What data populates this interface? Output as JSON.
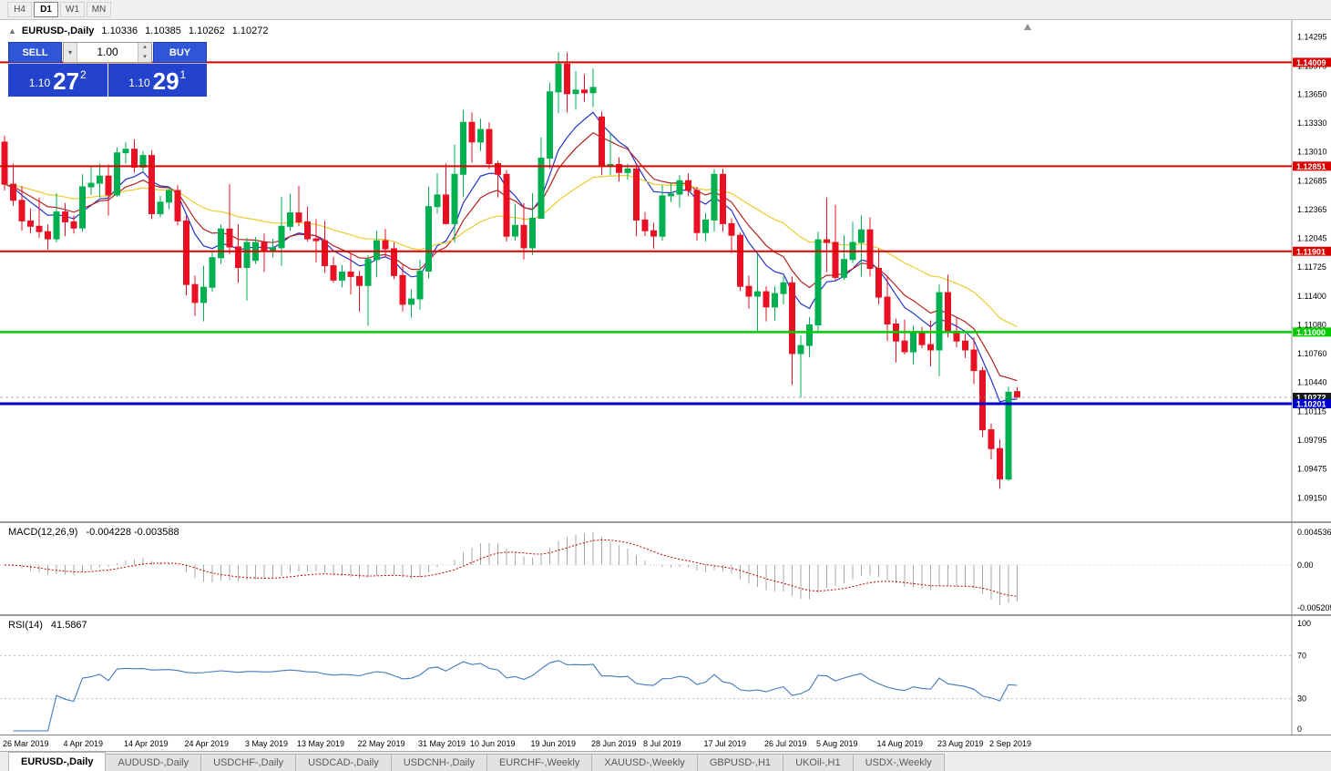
{
  "toolbar": {
    "timeframes": [
      {
        "label": "H4",
        "active": false
      },
      {
        "label": "D1",
        "active": true
      },
      {
        "label": "W1",
        "active": false
      },
      {
        "label": "MN",
        "active": false
      }
    ]
  },
  "chart_header": {
    "collapse_icon": "▲",
    "symbol": "EURUSD-,Daily",
    "ohlc": [
      "1.10336",
      "1.10385",
      "1.10262",
      "1.10272"
    ]
  },
  "trade_panel": {
    "sell_label": "SELL",
    "buy_label": "BUY",
    "volume": "1.00",
    "volume_dropdown_icon": "▾",
    "spin_up_icon": "▴",
    "spin_down_icon": "▾",
    "sell_price": {
      "whole": "1.10",
      "pips": "27",
      "pipette": "2"
    },
    "buy_price": {
      "whole": "1.10",
      "pips": "29",
      "pipette": "1"
    }
  },
  "macd_panel": {
    "name": "MACD(12,26,9)",
    "values": "-0.004228 -0.003588",
    "axis_labels": [
      "0.004536",
      "0.00",
      "-0.005205"
    ],
    "hist_color": "#a8a8a8",
    "signal_color": "#c00000"
  },
  "rsi_panel": {
    "name": "RSI(14)",
    "value": "41.5867",
    "axis_labels": [
      "100",
      "70",
      "30",
      "0"
    ],
    "levels": [
      70,
      30
    ],
    "line_color": "#4279bd"
  },
  "bottom_tabs": [
    {
      "label": "EURUSD-,Daily",
      "active": true
    },
    {
      "label": "AUDUSD-,Daily",
      "active": false
    },
    {
      "label": "USDCHF-,Daily",
      "active": false
    },
    {
      "label": "USDCAD-,Daily",
      "active": false
    },
    {
      "label": "USDCNH-,Daily",
      "active": false
    },
    {
      "label": "EURCHF-,Weekly",
      "active": false
    },
    {
      "label": "XAUUSD-,Weekly",
      "active": false
    },
    {
      "label": "GBPUSD-,H1",
      "active": false
    },
    {
      "label": "UKOil-,H1",
      "active": false
    },
    {
      "label": "USDX-,Weekly",
      "active": false
    }
  ],
  "chart_data": {
    "type": "candlestick",
    "symbol": "EURUSD-",
    "timeframe": "Daily",
    "up_color": "#00b050",
    "down_color": "#e81123",
    "price_range": [
      1.0895,
      1.1442
    ],
    "price_axis_labels": [
      "1.14295",
      "1.13970",
      "1.13650",
      "1.13330",
      "1.13010",
      "1.12685",
      "1.12365",
      "1.12045",
      "1.11725",
      "1.11400",
      "1.11080",
      "1.10760",
      "1.10440",
      "1.10115",
      "1.09795",
      "1.09475",
      "1.09150"
    ],
    "h_lines": [
      {
        "price": 1.14009,
        "label": "1.14009",
        "color": "#dd0000",
        "width": 2
      },
      {
        "price": 1.12851,
        "label": "1.12851",
        "color": "#dd0000",
        "width": 2
      },
      {
        "price": 1.11901,
        "label": "1.11901",
        "color": "#dd0000",
        "width": 2
      },
      {
        "price": 1.11,
        "label": "1.11000",
        "color": "#00cc00",
        "width": 2.5
      },
      {
        "price": 1.10201,
        "label": "1.10201",
        "color": "#0000cc",
        "width": 3
      }
    ],
    "current_price": {
      "price": 1.10272,
      "label": "1.10272",
      "badge_color": "#1a1a1a"
    },
    "ma_lines": [
      {
        "name": "ma-fast-blue",
        "period": 8,
        "color": "#2233cc"
      },
      {
        "name": "ma-mid-red",
        "period": 13,
        "color": "#b22222"
      },
      {
        "name": "ma-slow-yellow",
        "period": 34,
        "color": "#e9cd2d"
      }
    ],
    "time_axis": [
      {
        "label": "26 Mar 2019",
        "idx": 0
      },
      {
        "label": "4 Apr 2019",
        "idx": 7
      },
      {
        "label": "14 Apr 2019",
        "idx": 14
      },
      {
        "label": "24 Apr 2019",
        "idx": 21
      },
      {
        "label": "3 May 2019",
        "idx": 28
      },
      {
        "label": "13 May 2019",
        "idx": 34
      },
      {
        "label": "22 May 2019",
        "idx": 41
      },
      {
        "label": "31 May 2019",
        "idx": 48
      },
      {
        "label": "10 Jun 2019",
        "idx": 54
      },
      {
        "label": "19 Jun 2019",
        "idx": 61
      },
      {
        "label": "28 Jun 2019",
        "idx": 68
      },
      {
        "label": "8 Jul 2019",
        "idx": 74
      },
      {
        "label": "17 Jul 2019",
        "idx": 81
      },
      {
        "label": "26 Jul 2019",
        "idx": 88
      },
      {
        "label": "5 Aug 2019",
        "idx": 94
      },
      {
        "label": "14 Aug 2019",
        "idx": 101
      },
      {
        "label": "23 Aug 2019",
        "idx": 108
      },
      {
        "label": "2 Sep 2019",
        "idx": 114
      }
    ],
    "candles": [
      [
        1.1312,
        1.1319,
        1.1258,
        1.1265
      ],
      [
        1.1265,
        1.1288,
        1.1241,
        1.1247
      ],
      [
        1.1247,
        1.1263,
        1.1213,
        1.1224
      ],
      [
        1.1224,
        1.1238,
        1.121,
        1.1218
      ],
      [
        1.1218,
        1.125,
        1.1205,
        1.1212
      ],
      [
        1.1212,
        1.122,
        1.1192,
        1.1204
      ],
      [
        1.1204,
        1.1255,
        1.12,
        1.1234
      ],
      [
        1.1234,
        1.1244,
        1.1207,
        1.1223
      ],
      [
        1.1223,
        1.123,
        1.121,
        1.1216
      ],
      [
        1.1216,
        1.1276,
        1.1212,
        1.1262
      ],
      [
        1.1262,
        1.1285,
        1.1253,
        1.1266
      ],
      [
        1.1266,
        1.1288,
        1.125,
        1.1274
      ],
      [
        1.1274,
        1.1287,
        1.123,
        1.1253
      ],
      [
        1.1253,
        1.1306,
        1.1251,
        1.13
      ],
      [
        1.13,
        1.1312,
        1.1288,
        1.1304
      ],
      [
        1.1304,
        1.1315,
        1.1278,
        1.1284
      ],
      [
        1.1284,
        1.1302,
        1.1279,
        1.1297
      ],
      [
        1.1297,
        1.1303,
        1.1226,
        1.1232
      ],
      [
        1.1232,
        1.1252,
        1.1228,
        1.1245
      ],
      [
        1.1245,
        1.1262,
        1.1237,
        1.1258
      ],
      [
        1.1258,
        1.1264,
        1.1219,
        1.1224
      ],
      [
        1.1224,
        1.123,
        1.1141,
        1.1153
      ],
      [
        1.1153,
        1.1163,
        1.1118,
        1.1133
      ],
      [
        1.1133,
        1.1174,
        1.1112,
        1.115
      ],
      [
        1.115,
        1.119,
        1.1145,
        1.1183
      ],
      [
        1.1183,
        1.122,
        1.1176,
        1.1215
      ],
      [
        1.1215,
        1.1265,
        1.1187,
        1.1195
      ],
      [
        1.1195,
        1.122,
        1.1155,
        1.1172
      ],
      [
        1.1172,
        1.1205,
        1.1135,
        1.12
      ],
      [
        1.118,
        1.1206,
        1.1176,
        1.12
      ],
      [
        1.12,
        1.121,
        1.1167,
        1.119
      ],
      [
        1.119,
        1.1204,
        1.1183,
        1.1194
      ],
      [
        1.1194,
        1.1251,
        1.1174,
        1.1218
      ],
      [
        1.1218,
        1.1254,
        1.1213,
        1.1233
      ],
      [
        1.1233,
        1.1263,
        1.1218,
        1.1223
      ],
      [
        1.1223,
        1.124,
        1.1201,
        1.1204
      ],
      [
        1.1204,
        1.1226,
        1.1178,
        1.1202
      ],
      [
        1.1202,
        1.1224,
        1.1166,
        1.1174
      ],
      [
        1.1174,
        1.1184,
        1.1155,
        1.1158
      ],
      [
        1.1158,
        1.1175,
        1.115,
        1.1167
      ],
      [
        1.1167,
        1.1188,
        1.1142,
        1.1162
      ],
      [
        1.1162,
        1.1168,
        1.1123,
        1.1152
      ],
      [
        1.1152,
        1.1186,
        1.1107,
        1.1181
      ],
      [
        1.1181,
        1.1213,
        1.1161,
        1.1202
      ],
      [
        1.1202,
        1.1215,
        1.1184,
        1.1193
      ],
      [
        1.1193,
        1.12,
        1.1159,
        1.1163
      ],
      [
        1.1163,
        1.1175,
        1.1123,
        1.1131
      ],
      [
        1.1131,
        1.1148,
        1.1116,
        1.1137
      ],
      [
        1.1137,
        1.1181,
        1.1125,
        1.1168
      ],
      [
        1.1168,
        1.1262,
        1.116,
        1.124
      ],
      [
        1.124,
        1.1277,
        1.1232,
        1.1253
      ],
      [
        1.1253,
        1.1288,
        1.122,
        1.1221
      ],
      [
        1.1221,
        1.1309,
        1.12,
        1.1276
      ],
      [
        1.1276,
        1.1348,
        1.1251,
        1.1334
      ],
      [
        1.1334,
        1.1345,
        1.1289,
        1.1312
      ],
      [
        1.1312,
        1.1338,
        1.1302,
        1.1326
      ],
      [
        1.1326,
        1.1334,
        1.1282,
        1.1288
      ],
      [
        1.1288,
        1.1291,
        1.125,
        1.1276
      ],
      [
        1.1276,
        1.1281,
        1.1201,
        1.1207
      ],
      [
        1.1207,
        1.1243,
        1.1202,
        1.1219
      ],
      [
        1.1219,
        1.1244,
        1.1181,
        1.1194
      ],
      [
        1.1194,
        1.1255,
        1.1186,
        1.1227
      ],
      [
        1.1227,
        1.1317,
        1.1226,
        1.1294
      ],
      [
        1.1294,
        1.1378,
        1.1282,
        1.1368
      ],
      [
        1.1368,
        1.1412,
        1.1344,
        1.1399
      ],
      [
        1.1399,
        1.1412,
        1.1345,
        1.1366
      ],
      [
        1.1366,
        1.1391,
        1.1348,
        1.137
      ],
      [
        1.137,
        1.1388,
        1.1357,
        1.1367
      ],
      [
        1.1367,
        1.1394,
        1.1351,
        1.1373
      ],
      [
        1.134,
        1.1346,
        1.1275,
        1.1285
      ],
      [
        1.1285,
        1.1322,
        1.1275,
        1.1287
      ],
      [
        1.1287,
        1.1295,
        1.1268,
        1.1278
      ],
      [
        1.1278,
        1.1288,
        1.127,
        1.1282
      ],
      [
        1.1282,
        1.1287,
        1.1207,
        1.1225
      ],
      [
        1.1225,
        1.1234,
        1.1207,
        1.1213
      ],
      [
        1.1213,
        1.1222,
        1.1193,
        1.1207
      ],
      [
        1.1207,
        1.1264,
        1.1202,
        1.1252
      ],
      [
        1.1252,
        1.1267,
        1.1245,
        1.1254
      ],
      [
        1.1254,
        1.1275,
        1.1239,
        1.1269
      ],
      [
        1.1269,
        1.1277,
        1.1252,
        1.1258
      ],
      [
        1.1258,
        1.1262,
        1.1202,
        1.1211
      ],
      [
        1.1211,
        1.1233,
        1.1201,
        1.1225
      ],
      [
        1.1225,
        1.1282,
        1.1212,
        1.1276
      ],
      [
        1.1276,
        1.1282,
        1.1212,
        1.1221
      ],
      [
        1.1221,
        1.1227,
        1.1188,
        1.1208
      ],
      [
        1.1208,
        1.1211,
        1.1146,
        1.1151
      ],
      [
        1.1151,
        1.1163,
        1.1126,
        1.114
      ],
      [
        1.114,
        1.1187,
        1.1101,
        1.1145
      ],
      [
        1.1145,
        1.1151,
        1.1112,
        1.1128
      ],
      [
        1.1128,
        1.1151,
        1.1113,
        1.1143
      ],
      [
        1.1143,
        1.1162,
        1.1131,
        1.1155
      ],
      [
        1.1155,
        1.1162,
        1.1041,
        1.1076
      ],
      [
        1.1076,
        1.1096,
        1.1027,
        1.1085
      ],
      [
        1.1085,
        1.1117,
        1.1072,
        1.1108
      ],
      [
        1.1108,
        1.1212,
        1.1101,
        1.1203
      ],
      [
        1.1203,
        1.125,
        1.1167,
        1.12
      ],
      [
        1.12,
        1.1242,
        1.1158,
        1.1161
      ],
      [
        1.1161,
        1.1208,
        1.1158,
        1.1181
      ],
      [
        1.1181,
        1.1223,
        1.1177,
        1.12
      ],
      [
        1.12,
        1.123,
        1.1162,
        1.1214
      ],
      [
        1.1214,
        1.1228,
        1.1162,
        1.1171
      ],
      [
        1.1171,
        1.1193,
        1.1131,
        1.1139
      ],
      [
        1.1139,
        1.1163,
        1.109,
        1.1109
      ],
      [
        1.1109,
        1.1115,
        1.1066,
        1.109
      ],
      [
        1.109,
        1.1114,
        1.1075,
        1.1078
      ],
      [
        1.1078,
        1.1107,
        1.1064,
        1.1099
      ],
      [
        1.1099,
        1.1106,
        1.1082,
        1.1086
      ],
      [
        1.1086,
        1.1113,
        1.1062,
        1.108
      ],
      [
        1.108,
        1.1153,
        1.1051,
        1.1144
      ],
      [
        1.1144,
        1.1164,
        1.1094,
        1.1101
      ],
      [
        1.1101,
        1.1116,
        1.1083,
        1.109
      ],
      [
        1.109,
        1.1098,
        1.1071,
        1.108
      ],
      [
        1.108,
        1.1094,
        1.1042,
        1.1057
      ],
      [
        1.1057,
        1.1061,
        1.0983,
        1.0991
      ],
      [
        1.0991,
        1.0998,
        1.0958,
        1.097
      ],
      [
        1.097,
        1.098,
        1.0925,
        1.0936
      ],
      [
        1.0936,
        1.1039,
        1.0934,
        1.1033
      ],
      [
        1.10336,
        1.10385,
        1.10262,
        1.10272
      ]
    ]
  }
}
